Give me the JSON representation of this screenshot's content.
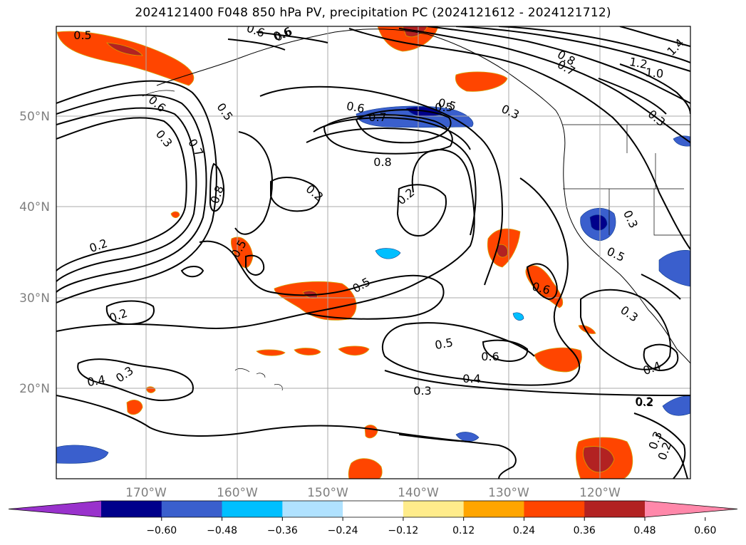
{
  "title": "2024121400 F048 850 hPa PV, precipitation PC (2024121612 - 2024121712)",
  "map": {
    "lat_labels": [
      "50°N",
      "40°N",
      "30°N",
      "20°N"
    ],
    "lon_labels": [
      "170°W",
      "160°W",
      "150°W",
      "140°W",
      "130°W",
      "120°W"
    ],
    "grid": true
  },
  "contour_labels": [
    "0.5",
    "0.6",
    "0.6",
    "0.5",
    "0.3",
    "0.7",
    "0.8",
    "0.2",
    "0.2",
    "0.3",
    "0.2",
    "0.4",
    "0.3",
    "0.5",
    "0.5",
    "0.6",
    "0.7",
    "0.5",
    "0.6",
    "0.8",
    "0.2",
    "0.2",
    "0.5",
    "0.5",
    "0.6",
    "0.4",
    "0.3",
    "0.3",
    "0.5",
    "0.3",
    "0.6",
    "0.3",
    "0.8",
    "0.7",
    "1.2",
    "1.0",
    "1.4",
    "0.6",
    "0.4",
    "0.2",
    "0.2",
    "0.3"
  ],
  "colorbar": {
    "ticks": [
      "−0.60",
      "−0.48",
      "−0.36",
      "−0.24",
      "−0.12",
      "0.12",
      "0.24",
      "0.36",
      "0.48",
      "0.60"
    ],
    "colors": [
      "#9932cc",
      "#00008b",
      "#3a5fcd",
      "#00bfff",
      "#b0e2ff",
      "#ffffff",
      "#ffec8b",
      "#ffa500",
      "#ff4500",
      "#b22222",
      "#ff88aa"
    ]
  }
}
